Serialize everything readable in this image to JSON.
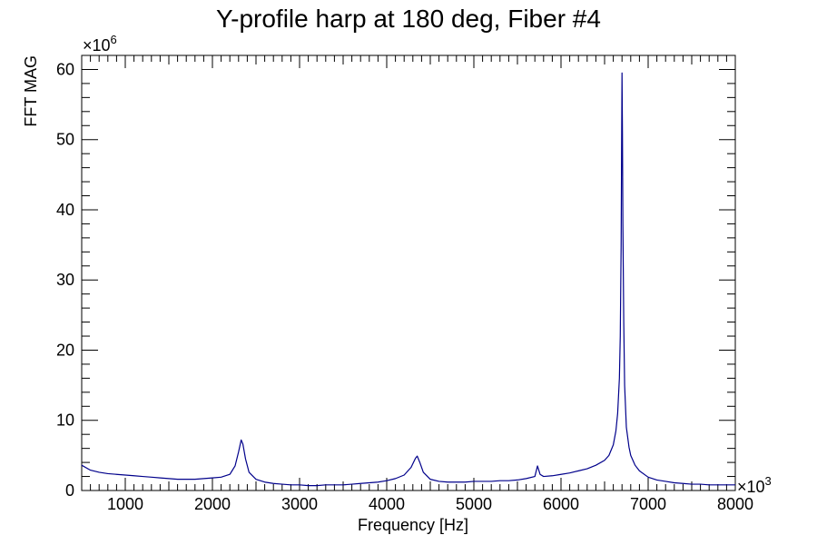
{
  "chart_data": {
    "type": "line",
    "title": "Y-profile harp at 180 deg, Fiber #4",
    "xlabel": "Frequency [Hz]",
    "ylabel": "FFT MAG",
    "x_multiplier": "×10",
    "x_exponent": "3",
    "y_multiplier": "×10",
    "y_exponent": "6",
    "xlim": [
      500,
      8000
    ],
    "ylim": [
      0,
      62
    ],
    "x_ticks": [
      1000,
      2000,
      3000,
      4000,
      5000,
      6000,
      7000,
      8000
    ],
    "x_tick_labels": [
      "1000",
      "2000",
      "3000",
      "4000",
      "5000",
      "6000",
      "7000",
      "8000"
    ],
    "y_ticks": [
      0,
      10,
      20,
      30,
      40,
      50,
      60
    ],
    "y_tick_labels": [
      "0",
      "10",
      "20",
      "30",
      "40",
      "50",
      "60"
    ],
    "grid": false,
    "line_color": "#00008b",
    "series": [
      {
        "x": [
          500,
          600,
          700,
          800,
          900,
          1000,
          1100,
          1200,
          1300,
          1400,
          1500,
          1600,
          1700,
          1800,
          1900,
          2000,
          2100,
          2200,
          2260,
          2300,
          2330,
          2350,
          2380,
          2420,
          2500,
          2600,
          2700,
          2800,
          2900,
          3000,
          3100,
          3200,
          3300,
          3400,
          3500,
          3600,
          3700,
          3800,
          3900,
          4000,
          4100,
          4200,
          4280,
          4330,
          4350,
          4380,
          4420,
          4500,
          4600,
          4700,
          4800,
          4900,
          5000,
          5100,
          5200,
          5300,
          5400,
          5500,
          5600,
          5700,
          5730,
          5760,
          5800,
          5900,
          6000,
          6100,
          6200,
          6300,
          6400,
          6500,
          6550,
          6600,
          6630,
          6650,
          6670,
          6680,
          6690,
          6695,
          6700,
          6705,
          6710,
          6720,
          6730,
          6750,
          6780,
          6800,
          6850,
          6900,
          7000,
          7100,
          7200,
          7300,
          7400,
          7500,
          7600,
          7700,
          7800,
          7900,
          8000
        ],
        "y": [
          3.6,
          2.9,
          2.6,
          2.4,
          2.3,
          2.2,
          2.1,
          2.0,
          1.9,
          1.8,
          1.7,
          1.6,
          1.6,
          1.6,
          1.7,
          1.8,
          1.9,
          2.3,
          3.5,
          5.5,
          7.2,
          6.6,
          4.5,
          2.6,
          1.6,
          1.2,
          1.0,
          0.9,
          0.8,
          0.8,
          0.7,
          0.7,
          0.8,
          0.8,
          0.8,
          0.9,
          1.0,
          1.1,
          1.2,
          1.4,
          1.7,
          2.2,
          3.3,
          4.6,
          4.9,
          4.0,
          2.6,
          1.6,
          1.3,
          1.2,
          1.2,
          1.2,
          1.3,
          1.3,
          1.3,
          1.4,
          1.4,
          1.5,
          1.7,
          2.0,
          3.5,
          2.3,
          2.0,
          2.1,
          2.3,
          2.5,
          2.8,
          3.1,
          3.6,
          4.3,
          5.0,
          6.5,
          8.5,
          11.0,
          16.0,
          22.0,
          35.0,
          48.0,
          59.5,
          51.0,
          38.0,
          24.0,
          15.0,
          9.0,
          6.2,
          5.0,
          3.6,
          2.8,
          1.9,
          1.5,
          1.3,
          1.1,
          1.0,
          0.9,
          0.9,
          0.8,
          0.8,
          0.8,
          0.8
        ]
      }
    ]
  }
}
